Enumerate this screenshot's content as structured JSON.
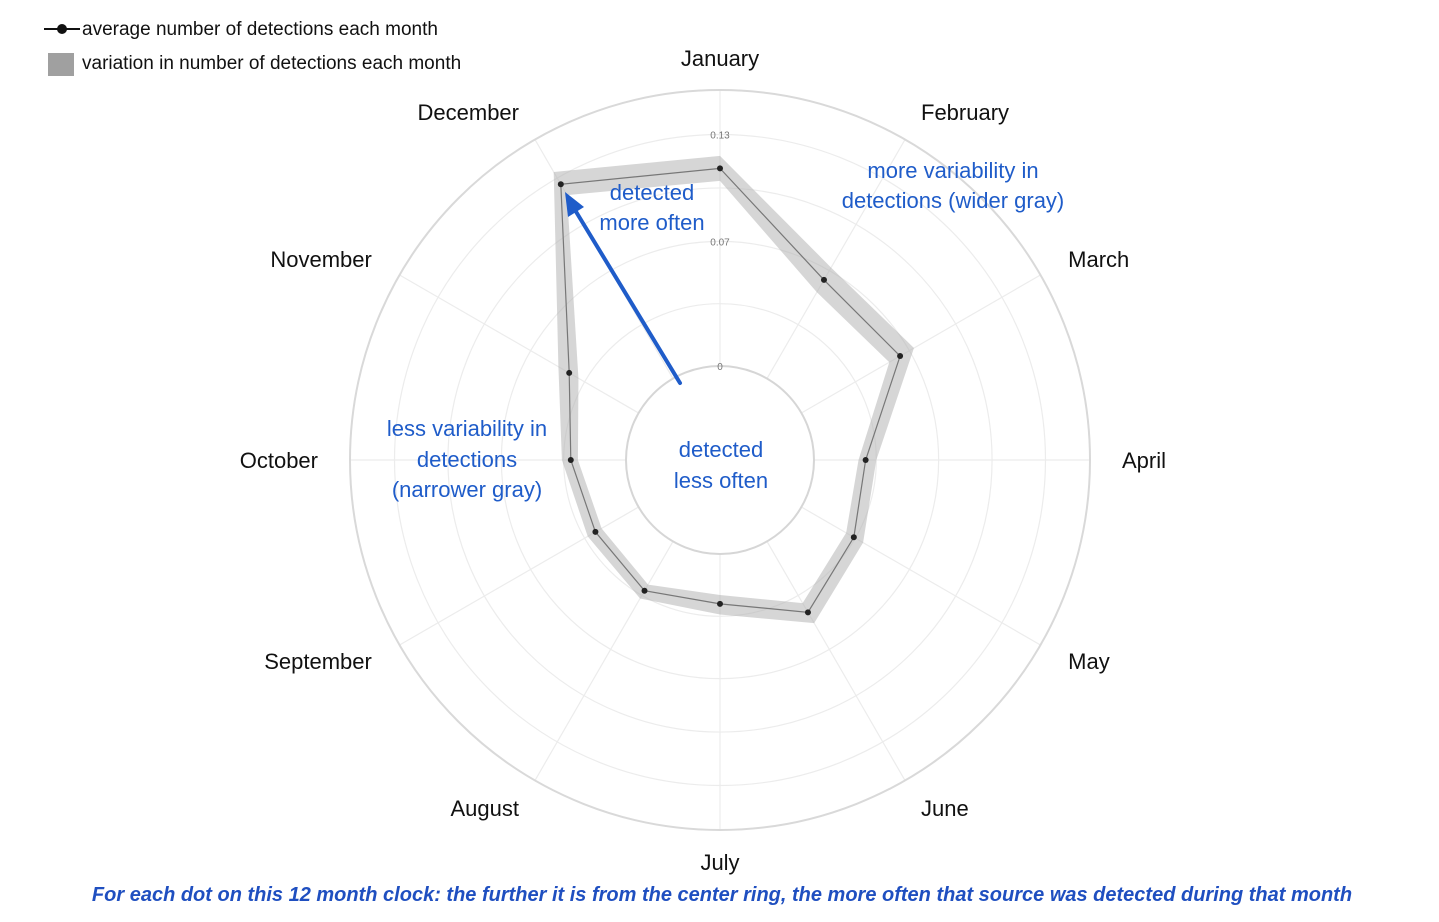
{
  "chart_data": {
    "type": "radar",
    "categories": [
      "January",
      "February",
      "March",
      "April",
      "May",
      "June",
      "July",
      "August",
      "September",
      "October",
      "November",
      "December"
    ],
    "series": [
      {
        "name": "average number of detections each month",
        "values": [
          0.111,
          0.064,
          0.064,
          0.029,
          0.034,
          0.046,
          0.028,
          0.032,
          0.028,
          0.031,
          0.045,
          0.126
        ],
        "color": "#222222"
      }
    ],
    "band": {
      "name": "variation in number of detections each month",
      "lower": [
        0.104,
        0.056,
        0.057,
        0.025,
        0.029,
        0.04,
        0.023,
        0.028,
        0.024,
        0.027,
        0.039,
        0.119
      ],
      "upper": [
        0.118,
        0.072,
        0.073,
        0.035,
        0.04,
        0.053,
        0.034,
        0.037,
        0.033,
        0.036,
        0.052,
        0.134
      ],
      "color": "#b4b4b4"
    },
    "axis": {
      "ticks": [
        0,
        0.07,
        0.13
      ],
      "tick_labels": [
        "0",
        "0.07",
        "0.13"
      ],
      "range": [
        0,
        0.155
      ]
    },
    "grid": true,
    "legend": {
      "position": "top-left",
      "entries": [
        {
          "label": "average number of detections each month",
          "kind": "line-dot"
        },
        {
          "label": "variation in number of detections each month",
          "kind": "band"
        }
      ]
    },
    "annotations": {
      "more_often": [
        "detected",
        "more often"
      ],
      "less_often": [
        "detected",
        "less often"
      ],
      "more_variability": [
        "more variability in",
        "detections (wider gray)"
      ],
      "less_variability": [
        "less variability in",
        "detections",
        "(narrower gray)"
      ]
    },
    "caption": "For each dot on this 12 month clock: the further it is from the center ring, the more often that source was detected during that month"
  },
  "colors": {
    "annotation": "#1f5cc9",
    "caption": "#1f4fc0",
    "band": "#b4b4b4",
    "line": "#222222",
    "grid": "#e6e6e6"
  }
}
